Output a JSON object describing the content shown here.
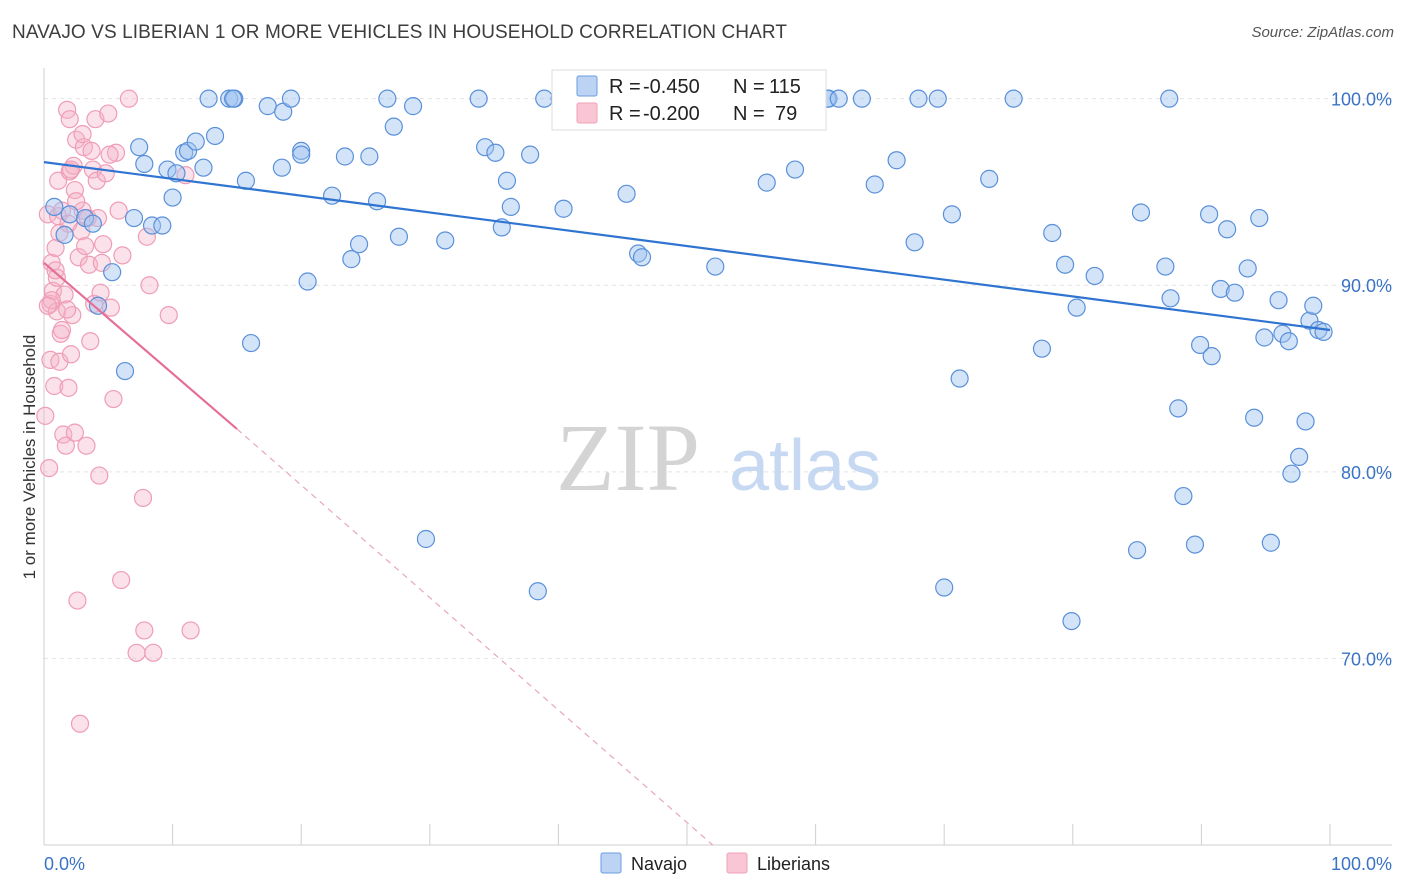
{
  "title": "NAVAJO VS LIBERIAN 1 OR MORE VEHICLES IN HOUSEHOLD CORRELATION CHART",
  "source": "Source: ZipAtlas.com",
  "watermark": {
    "zip": "ZIP",
    "atlas": "atlas"
  },
  "colors": {
    "navajo": "#6a9de0",
    "navajo_line": "#2f74d0",
    "liberians": "#f2a0b8",
    "liberians_line": "#e66f97",
    "tick": "#3a73c6"
  },
  "stats": [
    {
      "series": "Navajo",
      "r_label": "R =",
      "r_value": "-0.450",
      "n_label": "N =",
      "n_value": "115"
    },
    {
      "series": "Liberians",
      "r_label": "R =",
      "r_value": "-0.200",
      "n_label": "N =",
      "n_value": "79"
    }
  ],
  "chart_data": {
    "type": "scatter",
    "title": "NAVAJO VS LIBERIAN 1 OR MORE VEHICLES IN HOUSEHOLD CORRELATION CHART",
    "xlabel": "",
    "ylabel": "1 or more Vehicles in Household",
    "xlim": [
      0,
      100
    ],
    "ylim": [
      60,
      101
    ],
    "x_tick_labels": [
      "0.0%",
      "100.0%"
    ],
    "y_ticks": [
      70,
      80,
      90,
      100
    ],
    "y_tick_labels": [
      "70.0%",
      "80.0%",
      "90.0%",
      "100.0%"
    ],
    "grid": true,
    "legend": "bottom-center",
    "series": [
      {
        "name": "Navajo",
        "trend": {
          "x": [
            0,
            100
          ],
          "y": [
            96.6,
            87.6
          ]
        },
        "points": [
          [
            0.8,
            94.2
          ],
          [
            1.6,
            92.7
          ],
          [
            2.0,
            93.8
          ],
          [
            3.2,
            93.6
          ],
          [
            3.8,
            93.3
          ],
          [
            4.2,
            88.9
          ],
          [
            5.3,
            90.7
          ],
          [
            6.3,
            85.4
          ],
          [
            7.0,
            93.6
          ],
          [
            7.4,
            97.4
          ],
          [
            7.8,
            96.5
          ],
          [
            8.4,
            93.2
          ],
          [
            9.2,
            93.2
          ],
          [
            9.6,
            96.2
          ],
          [
            10.0,
            94.7
          ],
          [
            10.3,
            96.0
          ],
          [
            10.9,
            97.1
          ],
          [
            11.2,
            97.2
          ],
          [
            11.8,
            97.7
          ],
          [
            12.4,
            96.3
          ],
          [
            12.8,
            100.0
          ],
          [
            13.3,
            98.0
          ],
          [
            14.4,
            100.0
          ],
          [
            14.8,
            100.0
          ],
          [
            15.7,
            95.6
          ],
          [
            16.1,
            86.9
          ],
          [
            17.4,
            99.6
          ],
          [
            18.5,
            96.3
          ],
          [
            18.6,
            99.3
          ],
          [
            19.2,
            100.0
          ],
          [
            20.0,
            97.2
          ],
          [
            20.5,
            90.2
          ],
          [
            22.4,
            94.8
          ],
          [
            23.4,
            96.9
          ],
          [
            23.9,
            91.4
          ],
          [
            24.5,
            92.2
          ],
          [
            25.3,
            96.9
          ],
          [
            25.9,
            94.5
          ],
          [
            26.7,
            100.0
          ],
          [
            27.2,
            98.5
          ],
          [
            27.6,
            92.6
          ],
          [
            28.7,
            99.6
          ],
          [
            29.7,
            76.4
          ],
          [
            31.2,
            92.4
          ],
          [
            33.8,
            100.0
          ],
          [
            34.3,
            97.4
          ],
          [
            35.1,
            97.1
          ],
          [
            35.6,
            93.1
          ],
          [
            36.0,
            95.6
          ],
          [
            36.3,
            94.2
          ],
          [
            38.4,
            73.6
          ],
          [
            38.9,
            100.0
          ],
          [
            40.1,
            100.0
          ],
          [
            40.4,
            94.1
          ],
          [
            40.9,
            100.0
          ],
          [
            45.3,
            94.9
          ],
          [
            46.2,
            91.7
          ],
          [
            46.5,
            91.5
          ],
          [
            50.0,
            100.0
          ],
          [
            52.2,
            91.0
          ],
          [
            52.8,
            100.0
          ],
          [
            56.2,
            95.5
          ],
          [
            58.4,
            96.2
          ],
          [
            60.9,
            100.0
          ],
          [
            61.0,
            100.0
          ],
          [
            61.8,
            100.0
          ],
          [
            63.6,
            100.0
          ],
          [
            64.6,
            95.4
          ],
          [
            66.3,
            96.7
          ],
          [
            67.7,
            92.3
          ],
          [
            68.0,
            100.0
          ],
          [
            69.5,
            100.0
          ],
          [
            70.0,
            73.8
          ],
          [
            70.6,
            93.8
          ],
          [
            71.2,
            85.0
          ],
          [
            73.5,
            95.7
          ],
          [
            75.4,
            100.0
          ],
          [
            77.6,
            86.6
          ],
          [
            78.4,
            92.8
          ],
          [
            79.4,
            91.1
          ],
          [
            79.9,
            72.0
          ],
          [
            80.3,
            88.8
          ],
          [
            81.7,
            90.5
          ],
          [
            85.0,
            75.8
          ],
          [
            85.3,
            93.9
          ],
          [
            87.2,
            91.0
          ],
          [
            87.6,
            89.3
          ],
          [
            87.5,
            100.0
          ],
          [
            88.2,
            83.4
          ],
          [
            88.6,
            78.7
          ],
          [
            89.5,
            76.1
          ],
          [
            89.9,
            86.8
          ],
          [
            90.6,
            93.8
          ],
          [
            90.8,
            86.2
          ],
          [
            91.5,
            89.8
          ],
          [
            92.0,
            93.0
          ],
          [
            92.6,
            89.6
          ],
          [
            93.6,
            90.9
          ],
          [
            94.1,
            82.9
          ],
          [
            94.5,
            93.6
          ],
          [
            94.9,
            87.2
          ],
          [
            95.4,
            76.2
          ],
          [
            96.0,
            89.2
          ],
          [
            96.3,
            87.4
          ],
          [
            96.8,
            87.0
          ],
          [
            97.0,
            79.9
          ],
          [
            97.6,
            80.8
          ],
          [
            98.1,
            82.7
          ],
          [
            98.4,
            88.1
          ],
          [
            98.7,
            88.9
          ],
          [
            99.1,
            87.6
          ],
          [
            99.5,
            87.5
          ],
          [
            20.0,
            97.0
          ],
          [
            37.8,
            97.0
          ],
          [
            14.7,
            100.0
          ]
        ]
      },
      {
        "name": "Liberians",
        "trend": {
          "x": [
            0,
            15
          ],
          "y": [
            91.2,
            82.3
          ]
        },
        "trend_extension": {
          "x": [
            15,
            52
          ],
          "y": [
            82.3,
            60.0
          ]
        },
        "points": [
          [
            0.1,
            83.0
          ],
          [
            0.3,
            93.8
          ],
          [
            0.4,
            80.2
          ],
          [
            0.5,
            89.0
          ],
          [
            0.5,
            86.0
          ],
          [
            0.6,
            91.2
          ],
          [
            0.7,
            89.7
          ],
          [
            0.8,
            84.6
          ],
          [
            0.9,
            92.0
          ],
          [
            1.0,
            88.6
          ],
          [
            1.0,
            90.4
          ],
          [
            1.1,
            95.6
          ],
          [
            1.1,
            93.7
          ],
          [
            1.2,
            85.9
          ],
          [
            1.3,
            87.4
          ],
          [
            1.4,
            94.0
          ],
          [
            1.5,
            82.0
          ],
          [
            1.6,
            89.5
          ],
          [
            1.7,
            81.4
          ],
          [
            1.8,
            99.4
          ],
          [
            1.9,
            93.3
          ],
          [
            2.0,
            96.1
          ],
          [
            2.0,
            98.9
          ],
          [
            2.1,
            86.3
          ],
          [
            2.2,
            88.4
          ],
          [
            2.3,
            96.4
          ],
          [
            2.4,
            95.1
          ],
          [
            2.5,
            97.8
          ],
          [
            2.6,
            73.1
          ],
          [
            2.7,
            91.5
          ],
          [
            2.8,
            66.5
          ],
          [
            2.9,
            92.9
          ],
          [
            3.0,
            94.0
          ],
          [
            3.1,
            97.4
          ],
          [
            3.3,
            81.4
          ],
          [
            3.4,
            93.6
          ],
          [
            3.5,
            91.1
          ],
          [
            3.6,
            87.0
          ],
          [
            3.7,
            97.2
          ],
          [
            3.8,
            96.2
          ],
          [
            3.9,
            89.0
          ],
          [
            4.0,
            98.9
          ],
          [
            4.1,
            95.6
          ],
          [
            4.2,
            93.6
          ],
          [
            4.3,
            79.8
          ],
          [
            4.4,
            89.6
          ],
          [
            4.6,
            92.2
          ],
          [
            4.8,
            96.0
          ],
          [
            5.0,
            99.2
          ],
          [
            5.2,
            88.8
          ],
          [
            5.4,
            83.9
          ],
          [
            5.6,
            97.1
          ],
          [
            5.8,
            94.0
          ],
          [
            6.0,
            74.2
          ],
          [
            6.1,
            91.6
          ],
          [
            6.6,
            100.0
          ],
          [
            7.2,
            70.3
          ],
          [
            7.7,
            78.6
          ],
          [
            7.8,
            71.5
          ],
          [
            8.0,
            92.6
          ],
          [
            8.2,
            90.0
          ],
          [
            8.5,
            70.3
          ],
          [
            9.7,
            88.4
          ],
          [
            11.0,
            95.9
          ],
          [
            11.4,
            71.5
          ],
          [
            0.9,
            90.8
          ],
          [
            1.4,
            87.6
          ],
          [
            2.1,
            96.2
          ],
          [
            3.0,
            98.1
          ],
          [
            4.5,
            91.2
          ],
          [
            5.1,
            97.0
          ],
          [
            1.8,
            88.7
          ],
          [
            2.5,
            94.5
          ],
          [
            0.6,
            89.2
          ],
          [
            1.2,
            92.8
          ],
          [
            3.2,
            92.1
          ],
          [
            0.3,
            88.9
          ],
          [
            1.9,
            84.5
          ],
          [
            2.4,
            82.1
          ]
        ]
      }
    ]
  }
}
